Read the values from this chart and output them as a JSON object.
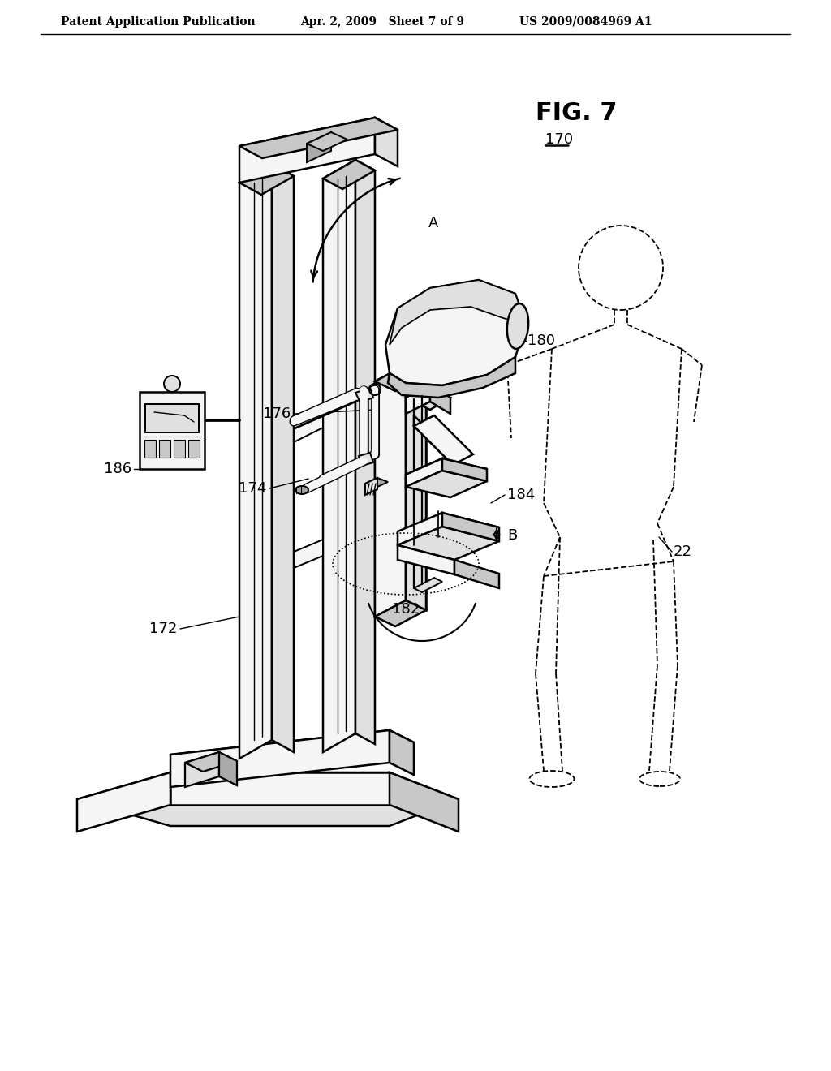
{
  "background_color": "#ffffff",
  "header_left": "Patent Application Publication",
  "header_center": "Apr. 2, 2009   Sheet 7 of 9",
  "header_right": "US 2009/0084969 A1",
  "fig_label": "FIG. 7",
  "ref_170": "170",
  "ref_172": "172",
  "ref_174": "174",
  "ref_176": "176",
  "ref_180": "180",
  "ref_182": "182",
  "ref_184": "184",
  "ref_186": "186",
  "label_A": "A",
  "label_B": "B",
  "ref_22": "22",
  "line_color": "#000000",
  "line_width": 1.8,
  "face_white": "#ffffff",
  "face_light": "#f5f5f5",
  "face_mid": "#e0e0e0",
  "face_dark": "#c8c8c8",
  "face_darker": "#aaaaaa"
}
